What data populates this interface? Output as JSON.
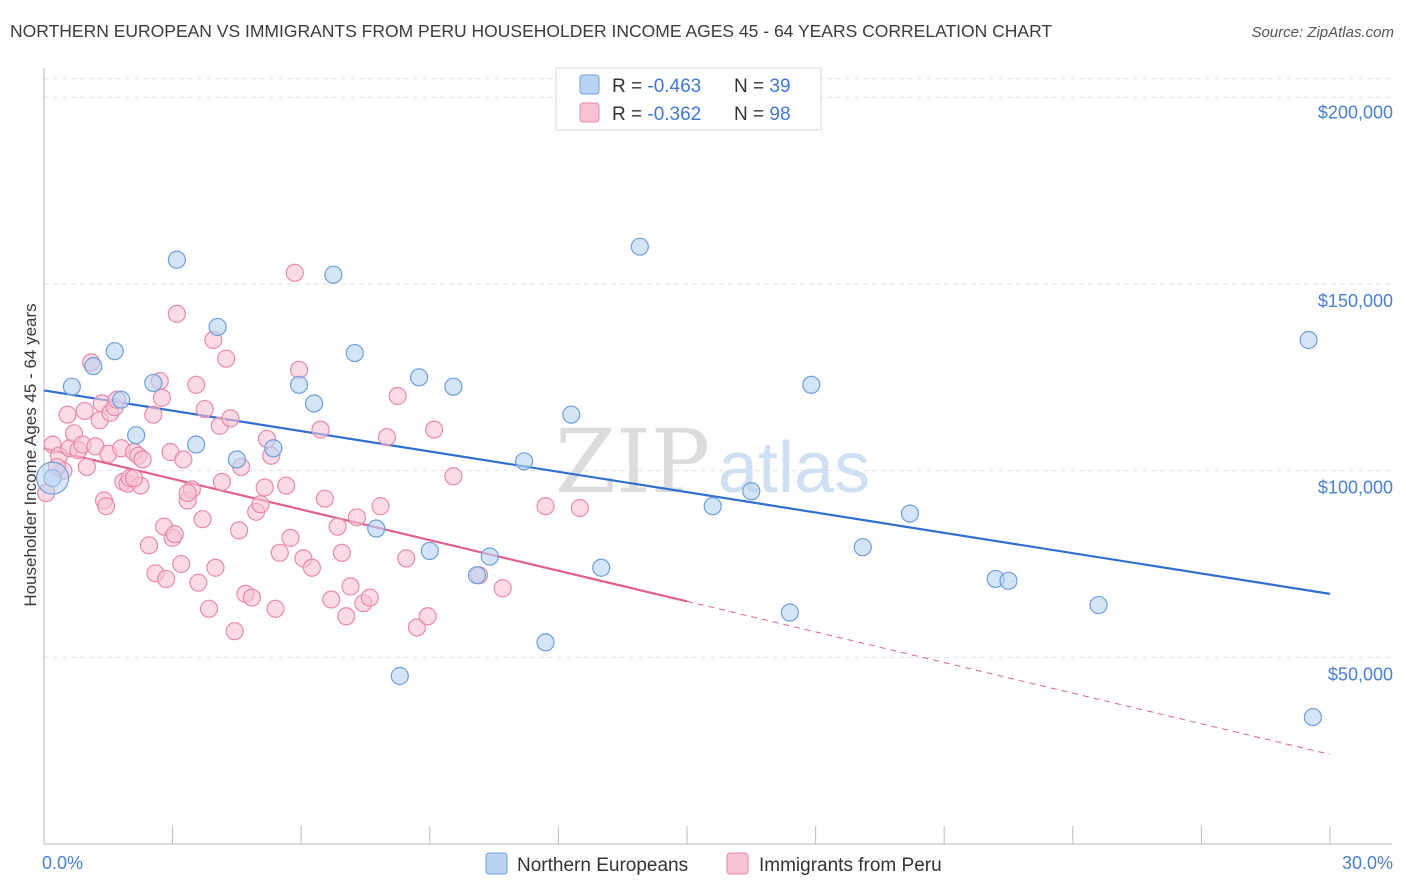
{
  "title": "NORTHERN EUROPEAN VS IMMIGRANTS FROM PERU HOUSEHOLDER INCOME AGES 45 - 64 YEARS CORRELATION CHART",
  "source": "Source: ZipAtlas.com",
  "watermark": {
    "zip": "ZIP",
    "atlas": "atlas"
  },
  "legend": {
    "r_label": "R = ",
    "n_label": "N = ",
    "rows": [
      {
        "r": "-0.463",
        "n": "39"
      },
      {
        "r": "-0.362",
        "n": "98"
      }
    ]
  },
  "colors": {
    "blue_fill": "#b8d3f3",
    "blue_stroke": "#6d9fdc",
    "blue_line": "#2e6fcf",
    "pink_fill": "#f7c3d3",
    "pink_stroke": "#e98aaa",
    "pink_line": "#e0608f"
  },
  "chart_data": {
    "type": "scatter",
    "title": "NORTHERN EUROPEAN VS IMMIGRANTS FROM PERU HOUSEHOLDER INCOME AGES 45 - 64 YEARS CORRELATION CHART",
    "ylabel": "Householder Income Ages 45 - 64 years",
    "xlabel": "",
    "xlim": [
      0,
      30
    ],
    "ylim": [
      0,
      210000
    ],
    "x_tick_labels": [
      "0.0%",
      "30.0%"
    ],
    "y_ticks": [
      {
        "value": 50000,
        "label": "$50,000"
      },
      {
        "value": 100000,
        "label": "$100,000"
      },
      {
        "value": 150000,
        "label": "$150,000"
      },
      {
        "value": 200000,
        "label": "$200,000"
      }
    ],
    "grid": "horizontal dashed",
    "legend_position": "top-center",
    "series": [
      {
        "name": "Northern Europeans",
        "color": "blue",
        "trend": {
          "x0": 0,
          "y0": 121500,
          "x1": 30,
          "y1": 67000
        },
        "points": [
          [
            0.2,
            98000
          ],
          [
            0.65,
            122500
          ],
          [
            1.15,
            128000
          ],
          [
            1.65,
            132000
          ],
          [
            2.15,
            109500
          ],
          [
            2.55,
            123500
          ],
          [
            3.1,
            156500
          ],
          [
            3.55,
            107000
          ],
          [
            4.05,
            138500
          ],
          [
            4.5,
            103000
          ],
          [
            5.35,
            106000
          ],
          [
            5.95,
            123000
          ],
          [
            6.3,
            118000
          ],
          [
            6.75,
            152500
          ],
          [
            7.25,
            131500
          ],
          [
            7.75,
            84500
          ],
          [
            8.75,
            125000
          ],
          [
            8.3,
            45000
          ],
          [
            9.0,
            78500
          ],
          [
            9.55,
            122500
          ],
          [
            10.1,
            72000
          ],
          [
            10.4,
            77000
          ],
          [
            11.2,
            102500
          ],
          [
            11.7,
            54000
          ],
          [
            12.3,
            115000
          ],
          [
            13.0,
            74000
          ],
          [
            13.9,
            160000
          ],
          [
            15.6,
            90500
          ],
          [
            16.5,
            94500
          ],
          [
            17.4,
            62000
          ],
          [
            17.9,
            123000
          ],
          [
            19.1,
            79500
          ],
          [
            20.2,
            88500
          ],
          [
            22.2,
            71000
          ],
          [
            22.5,
            70500
          ],
          [
            24.6,
            64000
          ],
          [
            29.5,
            135000
          ],
          [
            29.6,
            34000
          ],
          [
            1.8,
            119000
          ]
        ]
      },
      {
        "name": "Immigrants from Peru",
        "color": "pink",
        "trend": {
          "x0": 0,
          "y0": 106000,
          "x1": 15,
          "y1": 65000,
          "dash_x1": 30,
          "dash_y1": 24000
        },
        "points": [
          [
            0.05,
            94000
          ],
          [
            0.2,
            107000
          ],
          [
            0.35,
            104000
          ],
          [
            0.45,
            100000
          ],
          [
            0.55,
            115000
          ],
          [
            0.6,
            106000
          ],
          [
            0.7,
            110000
          ],
          [
            0.8,
            105500
          ],
          [
            0.9,
            107000
          ],
          [
            0.95,
            116000
          ],
          [
            1.0,
            101000
          ],
          [
            1.1,
            129000
          ],
          [
            1.2,
            106500
          ],
          [
            1.3,
            113500
          ],
          [
            1.35,
            118000
          ],
          [
            1.4,
            92000
          ],
          [
            1.45,
            90500
          ],
          [
            1.5,
            104500
          ],
          [
            1.55,
            115500
          ],
          [
            1.65,
            117000
          ],
          [
            1.7,
            119000
          ],
          [
            1.8,
            106000
          ],
          [
            1.85,
            97000
          ],
          [
            1.95,
            96500
          ],
          [
            2.0,
            98000
          ],
          [
            2.1,
            105000
          ],
          [
            2.2,
            104000
          ],
          [
            2.25,
            96000
          ],
          [
            2.3,
            103000
          ],
          [
            2.45,
            80000
          ],
          [
            2.55,
            115000
          ],
          [
            2.6,
            72500
          ],
          [
            2.7,
            124000
          ],
          [
            2.75,
            119500
          ],
          [
            2.8,
            85000
          ],
          [
            2.85,
            71000
          ],
          [
            2.95,
            105000
          ],
          [
            3.0,
            82000
          ],
          [
            3.05,
            83000
          ],
          [
            3.1,
            142000
          ],
          [
            3.2,
            75000
          ],
          [
            3.25,
            103000
          ],
          [
            3.35,
            92000
          ],
          [
            3.45,
            95000
          ],
          [
            3.55,
            123000
          ],
          [
            3.6,
            70000
          ],
          [
            3.7,
            87000
          ],
          [
            3.75,
            116500
          ],
          [
            3.85,
            63000
          ],
          [
            3.95,
            135000
          ],
          [
            4.0,
            74000
          ],
          [
            4.1,
            112000
          ],
          [
            4.15,
            97000
          ],
          [
            4.25,
            130000
          ],
          [
            4.35,
            114000
          ],
          [
            4.45,
            57000
          ],
          [
            4.55,
            84000
          ],
          [
            4.6,
            101000
          ],
          [
            4.7,
            67000
          ],
          [
            4.85,
            66000
          ],
          [
            4.95,
            89000
          ],
          [
            5.05,
            91000
          ],
          [
            5.15,
            95500
          ],
          [
            5.3,
            104000
          ],
          [
            5.4,
            63000
          ],
          [
            5.5,
            78000
          ],
          [
            5.65,
            96000
          ],
          [
            5.75,
            82000
          ],
          [
            5.85,
            153000
          ],
          [
            5.95,
            127000
          ],
          [
            6.05,
            76500
          ],
          [
            6.25,
            74000
          ],
          [
            6.45,
            111000
          ],
          [
            6.55,
            92500
          ],
          [
            6.7,
            65500
          ],
          [
            6.85,
            85000
          ],
          [
            6.95,
            78000
          ],
          [
            7.05,
            61000
          ],
          [
            7.15,
            69000
          ],
          [
            7.3,
            87500
          ],
          [
            7.45,
            64500
          ],
          [
            7.6,
            66000
          ],
          [
            7.85,
            90500
          ],
          [
            8.0,
            109000
          ],
          [
            8.25,
            120000
          ],
          [
            8.45,
            76500
          ],
          [
            8.7,
            58000
          ],
          [
            8.95,
            61000
          ],
          [
            9.1,
            111000
          ],
          [
            9.55,
            98500
          ],
          [
            10.15,
            72000
          ],
          [
            10.7,
            68500
          ],
          [
            11.7,
            90500
          ],
          [
            12.5,
            90000
          ],
          [
            5.2,
            108500
          ],
          [
            3.35,
            94000
          ],
          [
            2.1,
            98000
          ],
          [
            0.3,
            101000
          ]
        ]
      }
    ]
  },
  "bottom_legend": [
    "Northern Europeans",
    "Immigrants from Peru"
  ]
}
